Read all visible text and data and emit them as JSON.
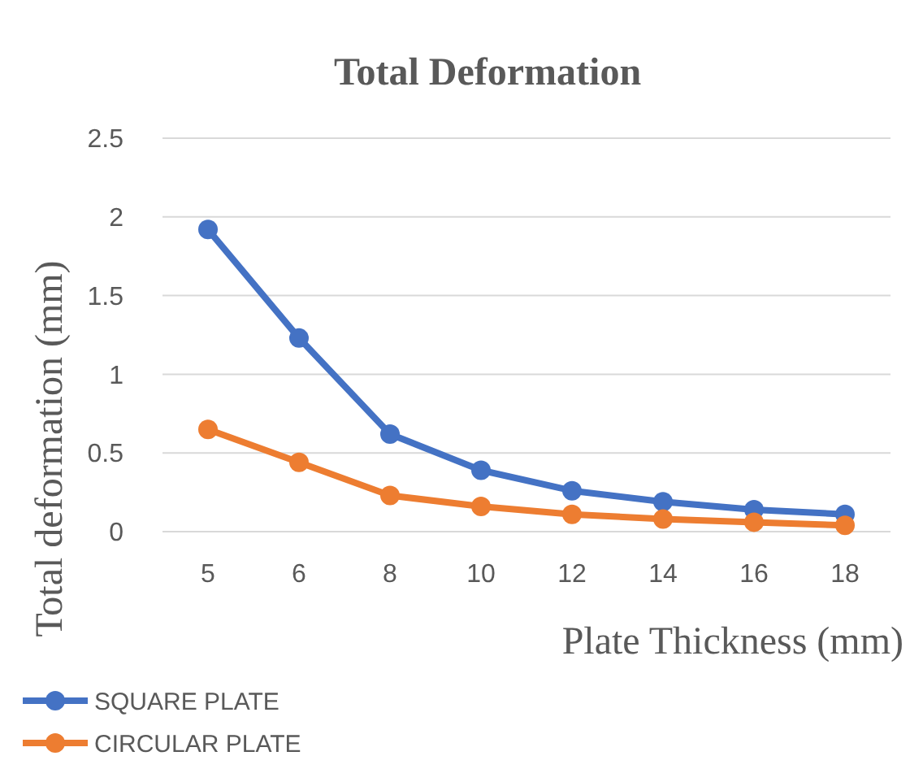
{
  "chart_data": {
    "type": "line",
    "title": "Total Deformation",
    "xlabel": "Plate Thickness (mm)",
    "ylabel": "Total deformation (mm)",
    "categories": [
      "5",
      "6",
      "8",
      "10",
      "12",
      "14",
      "16",
      "18"
    ],
    "series": [
      {
        "name": "SQUARE PLATE",
        "color": "#4472c4",
        "values": [
          1.92,
          1.23,
          0.62,
          0.39,
          0.26,
          0.19,
          0.14,
          0.11
        ]
      },
      {
        "name": "CIRCULAR PLATE",
        "color": "#ed7d31",
        "values": [
          0.65,
          0.44,
          0.23,
          0.16,
          0.11,
          0.08,
          0.06,
          0.04
        ]
      }
    ],
    "ylim": [
      0,
      2.5
    ],
    "yticks": [
      0,
      0.5,
      1,
      1.5,
      2,
      2.5
    ],
    "grid": "y",
    "legend": "bottom left",
    "marker": "circle",
    "line_style": "solid"
  }
}
